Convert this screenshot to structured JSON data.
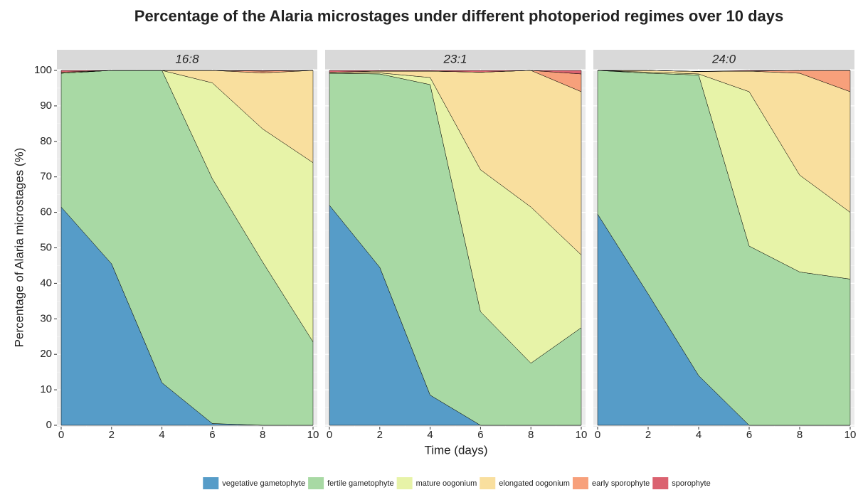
{
  "chart_data": {
    "type": "area",
    "title": "Percentage of the Alaria microstages under different photoperiod regimes over 10 days",
    "x_label": "Time (days)",
    "y_label": "Percentage of Alaria microstages (%)",
    "x": [
      0,
      2,
      4,
      6,
      8,
      10
    ],
    "xlim": [
      0,
      10
    ],
    "xticks": [
      0,
      2,
      4,
      6,
      8,
      10
    ],
    "ylim": [
      0,
      100
    ],
    "yticks": [
      0,
      10,
      20,
      30,
      40,
      50,
      60,
      70,
      80,
      90,
      100
    ],
    "grid": true,
    "legend": "bottom",
    "series": [
      {
        "name": "vegetative gametophyte",
        "color": "#569cc8"
      },
      {
        "name": "fertile gametophyte",
        "color": "#a8d9a4"
      },
      {
        "name": "mature oogonium",
        "color": "#e7f3a8"
      },
      {
        "name": "elongated oogonium",
        "color": "#f9df9e"
      },
      {
        "name": "early sporophyte",
        "color": "#f7a07b"
      },
      {
        "name": "sporophyte",
        "color": "#db6270"
      }
    ],
    "panels": [
      {
        "title": "16:8",
        "values": [
          [
            61.5,
            45.5,
            12,
            0.5,
            0,
            0
          ],
          [
            37.7,
            54.5,
            88,
            69,
            46,
            23.5
          ],
          [
            0,
            0,
            0,
            27,
            37.5,
            50.5
          ],
          [
            0.3,
            0,
            0,
            3.5,
            15.8,
            26
          ],
          [
            0,
            0,
            0,
            0,
            0.5,
            0
          ],
          [
            0.5,
            0,
            0,
            0,
            0.2,
            0
          ]
        ]
      },
      {
        "title": "23:1",
        "values": [
          [
            62,
            44.5,
            8.5,
            0,
            0,
            0
          ],
          [
            37.2,
            54.5,
            87.5,
            32,
            17.5,
            27.5
          ],
          [
            0,
            0.3,
            2,
            40,
            44,
            20.5
          ],
          [
            0.3,
            0.5,
            1.8,
            27.5,
            38.5,
            46
          ],
          [
            0,
            0,
            0,
            0,
            0,
            5
          ],
          [
            0.5,
            0.2,
            0.2,
            0.5,
            0,
            1
          ]
        ]
      },
      {
        "title": "24:0",
        "values": [
          [
            59.5,
            37,
            14,
            0,
            0,
            0
          ],
          [
            40.5,
            62.2,
            84.7,
            50.5,
            43.2,
            41.2
          ],
          [
            0,
            0.3,
            0.3,
            43.5,
            27.3,
            18.8
          ],
          [
            0,
            0.5,
            0.7,
            5.8,
            28.7,
            34
          ],
          [
            0,
            0,
            0,
            0,
            0.8,
            6
          ],
          [
            0,
            0,
            0,
            0.2,
            0,
            0
          ]
        ]
      }
    ]
  }
}
